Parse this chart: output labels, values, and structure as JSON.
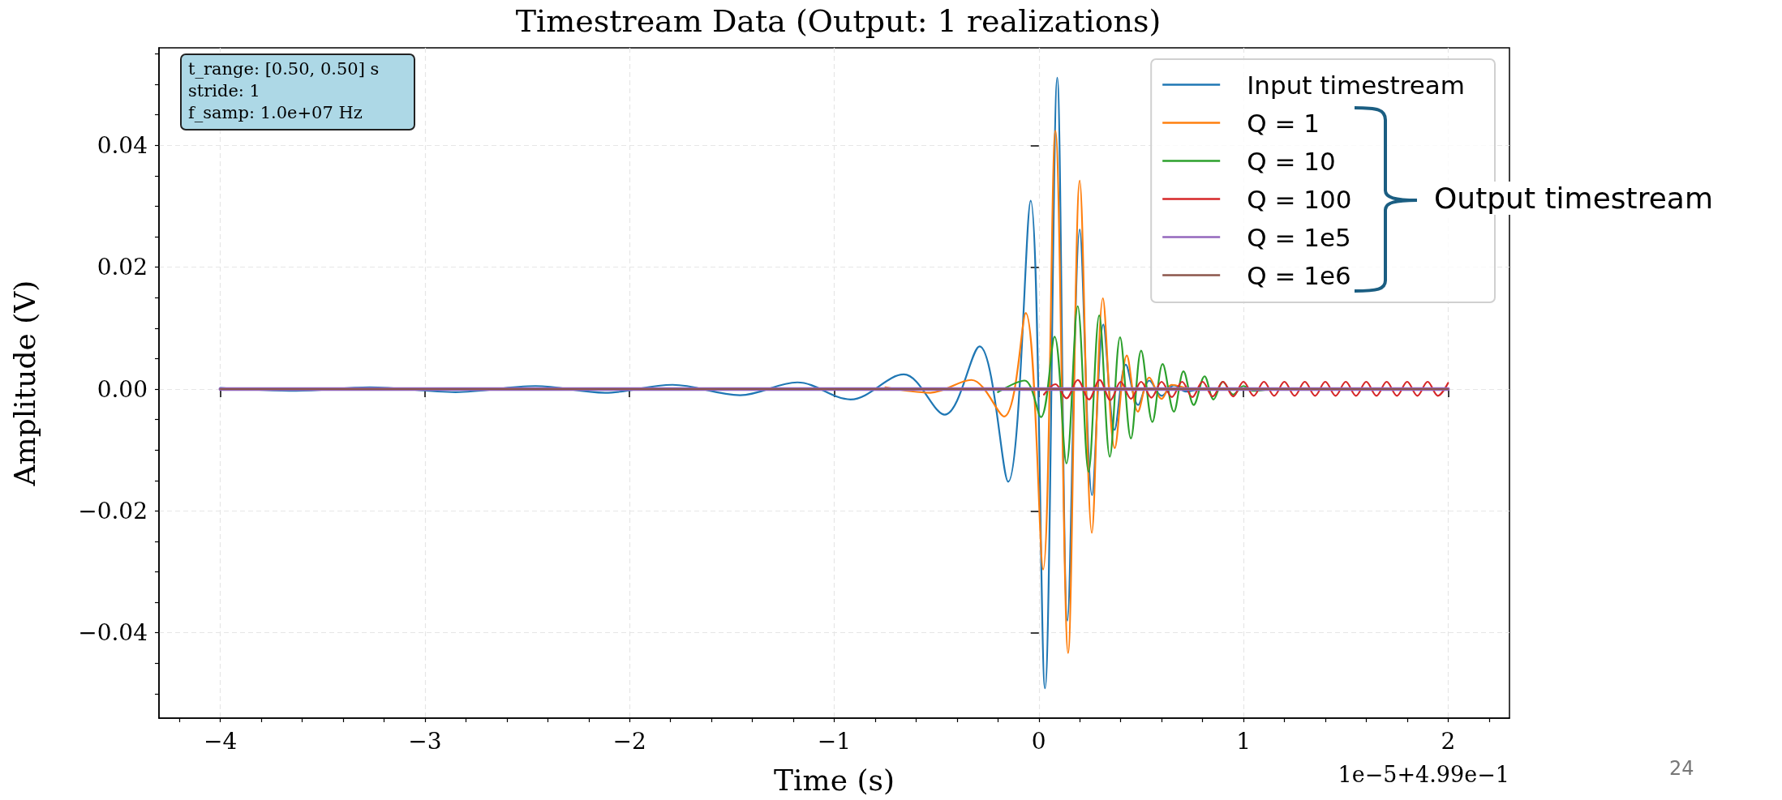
{
  "chart_data": {
    "type": "line",
    "title": "Timestream Data (Output: 1 realizations)",
    "xlabel": "Time (s)",
    "ylabel": "Amplitude (V)",
    "annotations": [
      "t_range: [0.50, 0.50] s",
      "stride: 1",
      "f_samp: 1.0e+07 Hz",
      "Output timestream",
      "1e−5+4.99e−1",
      "24"
    ],
    "xlim": [
      -4.3,
      2.3
    ],
    "ylim": [
      -0.054,
      0.056
    ],
    "xticks": [
      {
        "value": -4.2,
        "label": null
      },
      {
        "value": -4,
        "label": "−4"
      },
      {
        "value": -3.8,
        "label": null
      },
      {
        "value": -3.6,
        "label": null
      },
      {
        "value": -3.4,
        "label": null
      },
      {
        "value": -3.2,
        "label": null
      },
      {
        "value": -3,
        "label": "−3"
      },
      {
        "value": -2.8,
        "label": null
      },
      {
        "value": -2.6,
        "label": null
      },
      {
        "value": -2.4,
        "label": null
      },
      {
        "value": -2.2,
        "label": null
      },
      {
        "value": -2,
        "label": "−2"
      },
      {
        "value": -1.8,
        "label": null
      },
      {
        "value": -1.6,
        "label": null
      },
      {
        "value": -1.4,
        "label": null
      },
      {
        "value": -1.2,
        "label": null
      },
      {
        "value": -1,
        "label": "−1"
      },
      {
        "value": -0.8,
        "label": null
      },
      {
        "value": -0.6,
        "label": null
      },
      {
        "value": -0.4,
        "label": null
      },
      {
        "value": -0.2,
        "label": null
      },
      0,
      {
        "value": 0.2,
        "label": null
      },
      {
        "value": 0.4,
        "label": null
      },
      {
        "value": 0.6,
        "label": null
      },
      {
        "value": 0.8,
        "label": null
      },
      1,
      {
        "value": 1.2,
        "label": null
      },
      {
        "value": 1.4,
        "label": null
      },
      {
        "value": 1.6,
        "label": null
      },
      {
        "value": 1.8,
        "label": null
      },
      2,
      {
        "value": 2.2,
        "label": null
      }
    ],
    "yticks": [
      {
        "value": -0.05,
        "label": null
      },
      {
        "value": -0.045,
        "label": null
      },
      {
        "value": -0.04,
        "label": "−0.04"
      },
      {
        "value": -0.035,
        "label": null
      },
      {
        "value": -0.03,
        "label": null
      },
      {
        "value": -0.025,
        "label": null
      },
      {
        "value": -0.02,
        "label": "−0.02"
      },
      {
        "value": -0.015,
        "label": null
      },
      {
        "value": -0.01,
        "label": null
      },
      {
        "value": -0.005,
        "label": null
      },
      {
        "value": 0,
        "label": "0.00"
      },
      {
        "value": 0.005,
        "label": null
      },
      {
        "value": 0.01,
        "label": null
      },
      {
        "value": 0.015,
        "label": null
      },
      0.02,
      {
        "value": 0.025,
        "label": null
      },
      {
        "value": 0.03,
        "label": null
      },
      {
        "value": 0.035,
        "label": null
      },
      0.04,
      {
        "value": 0.045,
        "label": null
      },
      {
        "value": 0.05,
        "label": null
      },
      {
        "value": 0.055,
        "label": null
      }
    ],
    "grid": true,
    "legend": "top right",
    "marker": "none",
    "line_style": "solid",
    "series": [
      {
        "name": "Input timestream",
        "color": "#1f77b4",
        "x": [
          -4.0,
          -3.63,
          -3.27,
          -2.85,
          -2.46,
          -2.12,
          -1.79,
          -1.46,
          -1.18,
          -0.92,
          -0.66,
          -0.46,
          -0.29,
          -0.15,
          -0.04,
          0.03,
          0.09,
          0.14,
          0.2,
          0.26,
          0.315,
          0.37,
          0.425,
          0.485,
          0.54,
          0.6,
          0.66,
          0.72,
          0.8,
          2.0
        ],
        "values": [
          0.0002,
          -0.0003,
          0.0003,
          -0.0005,
          0.0005,
          -0.0006,
          0.0007,
          -0.001,
          0.0011,
          -0.0017,
          0.0024,
          -0.0042,
          0.007,
          -0.0152,
          0.0309,
          -0.0491,
          0.0511,
          -0.038,
          0.0262,
          -0.0174,
          0.0106,
          -0.0067,
          0.004,
          -0.0026,
          0.0014,
          -0.0011,
          0.0006,
          -0.0004,
          0,
          0
        ]
      },
      {
        "name": "Q = 1",
        "color": "#ff7f0e",
        "x": [
          -0.75,
          -0.53,
          -0.33,
          -0.17,
          -0.064,
          0.021,
          0.081,
          0.143,
          0.2,
          0.259,
          0.313,
          0.371,
          0.43,
          0.484,
          0.54,
          0.6,
          0.65,
          0.75,
          2.0
        ],
        "values": [
          0.0003,
          -0.0006,
          0.0015,
          -0.0045,
          0.0125,
          -0.0296,
          0.0424,
          -0.0433,
          0.0342,
          -0.0236,
          0.0149,
          -0.0097,
          0.0055,
          -0.0037,
          0.0019,
          -0.0016,
          0.0007,
          0,
          0
        ]
      },
      {
        "name": "Q = 10",
        "color": "#2ca02c",
        "x": [
          -0.2,
          -0.07,
          0.01,
          0.077,
          0.135,
          0.19,
          0.243,
          0.295,
          0.347,
          0.397,
          0.45,
          0.5,
          0.555,
          0.605,
          0.66,
          0.707,
          0.757,
          0.81,
          0.854,
          0.9,
          0.95,
          1.0,
          1.05,
          1.15,
          2.0
        ],
        "values": [
          -0.0005,
          0.0014,
          -0.0046,
          0.0086,
          -0.0122,
          0.0136,
          -0.0136,
          0.0121,
          -0.0111,
          0.0085,
          -0.0081,
          0.0063,
          -0.0054,
          0.0041,
          -0.0037,
          0.0029,
          -0.0026,
          0.0021,
          -0.0017,
          0.0012,
          -0.0009,
          0.0005,
          -0.0003,
          0,
          0
        ]
      },
      {
        "name": "Q = 100",
        "color": "#d62728",
        "x": [
          0.025,
          0.081,
          0.135,
          0.19,
          0.245,
          0.297,
          0.35,
          0.4,
          0.45,
          0.5,
          0.55,
          0.6,
          0.65,
          0.7,
          0.75,
          0.8,
          0.85,
          0.9,
          0.95,
          1.0,
          1.05,
          1.1,
          1.15,
          1.2,
          1.25,
          1.3,
          1.35,
          1.4,
          1.45,
          1.5,
          1.55,
          1.6,
          1.65,
          1.7,
          1.75,
          1.8,
          1.85,
          1.9,
          1.95,
          2.0
        ],
        "values": [
          -0.0009,
          0.0008,
          -0.0015,
          0.0015,
          -0.0017,
          0.0015,
          -0.0018,
          0.0012,
          -0.0016,
          0.0012,
          -0.0014,
          0.0012,
          -0.0013,
          0.0012,
          -0.0013,
          0.0012,
          -0.0012,
          0.0012,
          -0.0012,
          0.0012,
          -0.0011,
          0.0012,
          -0.0011,
          0.0012,
          -0.0011,
          0.0012,
          -0.0011,
          0.0012,
          -0.0011,
          0.0012,
          -0.0011,
          0.0012,
          -0.0011,
          0.0012,
          -0.0011,
          0.0012,
          -0.0011,
          0.0012,
          -0.0011,
          0.001
        ]
      },
      {
        "name": "Q = 1e5",
        "color": "#9467bd",
        "x": [
          -4.0,
          2.0
        ],
        "values": [
          0,
          0
        ]
      },
      {
        "name": "Q = 1e6",
        "color": "#8c564b",
        "x": [
          -4.0,
          2.0
        ],
        "values": [
          0,
          0
        ]
      }
    ]
  }
}
